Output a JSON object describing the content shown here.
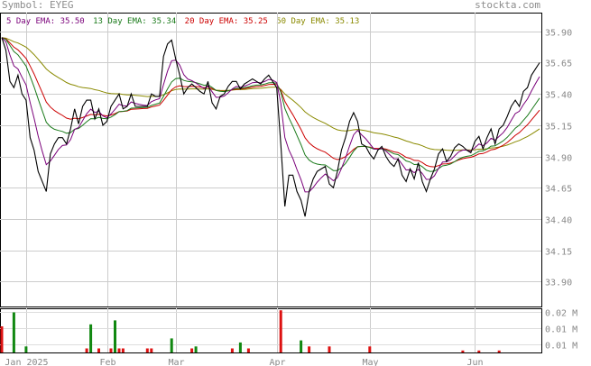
{
  "header": {
    "symbol_label": "Symbol: EYEG",
    "site": "stockta.com"
  },
  "legend": [
    {
      "label": "5 Day EMA: 35.50",
      "color": "#7a007a"
    },
    {
      "label": "13 Day EMA: 35.34",
      "color": "#1a7a1a"
    },
    {
      "label": "20 Day EMA: 35.25",
      "color": "#cc0000"
    },
    {
      "label": "50 Day EMA: 35.13",
      "color": "#8a8a00"
    }
  ],
  "chart_data": {
    "type": "line",
    "title": "",
    "xlabel": "",
    "ylabel": "",
    "ylim": [
      33.7,
      36.05
    ],
    "grid": true,
    "legend_placement": "top-left",
    "x_ticks": [
      "Jan 2025",
      "Feb",
      "Mar",
      "Apr",
      "May",
      "Jun"
    ],
    "x_tick_index": [
      6,
      26,
      43,
      68,
      91,
      117
    ],
    "y_ticks": [
      "35.90",
      "35.65",
      "35.40",
      "35.15",
      "34.90",
      "34.65",
      "34.40",
      "34.15",
      "33.90"
    ],
    "y_tick_values": [
      35.9,
      35.65,
      35.4,
      35.15,
      34.9,
      34.65,
      34.4,
      34.15,
      33.9
    ],
    "price": [
      35.85,
      35.75,
      35.5,
      35.45,
      35.55,
      35.4,
      35.35,
      35.05,
      34.95,
      34.78,
      34.7,
      34.62,
      34.92,
      35.0,
      35.05,
      35.05,
      35.0,
      35.12,
      35.28,
      35.16,
      35.3,
      35.35,
      35.35,
      35.2,
      35.28,
      35.15,
      35.18,
      35.3,
      35.35,
      35.4,
      35.28,
      35.3,
      35.4,
      35.3,
      35.3,
      35.3,
      35.3,
      35.4,
      35.38,
      35.38,
      35.7,
      35.8,
      35.83,
      35.68,
      35.55,
      35.4,
      35.45,
      35.48,
      35.45,
      35.42,
      35.4,
      35.5,
      35.33,
      35.28,
      35.38,
      35.4,
      35.46,
      35.5,
      35.5,
      35.44,
      35.48,
      35.5,
      35.52,
      35.5,
      35.48,
      35.52,
      35.55,
      35.5,
      35.45,
      35.0,
      34.5,
      34.75,
      34.75,
      34.62,
      34.55,
      34.42,
      34.62,
      34.72,
      34.78,
      34.8,
      34.82,
      34.68,
      34.65,
      34.78,
      34.95,
      35.05,
      35.18,
      35.25,
      35.18,
      35.0,
      34.98,
      34.92,
      34.88,
      34.95,
      34.98,
      34.9,
      34.85,
      34.82,
      34.88,
      34.75,
      34.7,
      34.8,
      34.72,
      34.85,
      34.7,
      34.62,
      34.72,
      34.8,
      34.92,
      34.96,
      34.86,
      34.9,
      34.97,
      35.0,
      34.98,
      34.95,
      34.93,
      35.02,
      35.06,
      34.96,
      35.05,
      35.12,
      35.0,
      35.12,
      35.15,
      35.22,
      35.3,
      35.35,
      35.3,
      35.42,
      35.45,
      35.55,
      35.6,
      35.65
    ],
    "volume_ticks": [
      "0.02 M",
      "0.01 M",
      "0.01 M"
    ],
    "volume_tick_values": [
      0.02,
      0.012,
      0.004
    ],
    "volume_ymax": 0.022,
    "volume": [
      {
        "i": 0,
        "v": 0.013,
        "c": "red"
      },
      {
        "i": 3,
        "v": 0.02,
        "c": "green"
      },
      {
        "i": 6,
        "v": 0.003,
        "c": "green"
      },
      {
        "i": 21,
        "v": 0.002,
        "c": "red"
      },
      {
        "i": 22,
        "v": 0.014,
        "c": "green"
      },
      {
        "i": 24,
        "v": 0.002,
        "c": "red"
      },
      {
        "i": 27,
        "v": 0.002,
        "c": "red"
      },
      {
        "i": 28,
        "v": 0.016,
        "c": "green"
      },
      {
        "i": 29,
        "v": 0.002,
        "c": "red"
      },
      {
        "i": 30,
        "v": 0.002,
        "c": "red"
      },
      {
        "i": 36,
        "v": 0.002,
        "c": "red"
      },
      {
        "i": 37,
        "v": 0.002,
        "c": "red"
      },
      {
        "i": 42,
        "v": 0.007,
        "c": "green"
      },
      {
        "i": 47,
        "v": 0.002,
        "c": "red"
      },
      {
        "i": 48,
        "v": 0.003,
        "c": "green"
      },
      {
        "i": 57,
        "v": 0.002,
        "c": "red"
      },
      {
        "i": 59,
        "v": 0.005,
        "c": "green"
      },
      {
        "i": 61,
        "v": 0.002,
        "c": "red"
      },
      {
        "i": 69,
        "v": 0.021,
        "c": "red"
      },
      {
        "i": 74,
        "v": 0.006,
        "c": "green"
      },
      {
        "i": 76,
        "v": 0.003,
        "c": "red"
      },
      {
        "i": 81,
        "v": 0.003,
        "c": "red"
      },
      {
        "i": 91,
        "v": 0.003,
        "c": "red"
      },
      {
        "i": 114,
        "v": 0.001,
        "c": "red"
      },
      {
        "i": 118,
        "v": 0.001,
        "c": "red"
      },
      {
        "i": 123,
        "v": 0.001,
        "c": "red"
      }
    ]
  }
}
